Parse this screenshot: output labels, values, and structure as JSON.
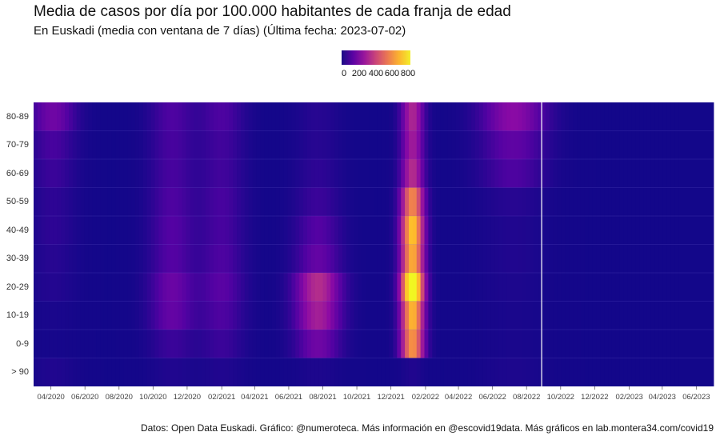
{
  "title": "Media de casos por día por 100.000 habitantes de cada franja de edad",
  "subtitle": "En Euskadi (media con ventana de 7 días)  (Última fecha: 2023-07-02)",
  "legend": {
    "labels": [
      "0",
      "200",
      "400",
      "600",
      "800"
    ]
  },
  "caption": "Datos: Open Data Euskadi. Gráfico: @numeroteca. Más información en @escovid19data.  Más gráficos en lab.montera34.com/covid19",
  "chart_data": {
    "type": "heatmap",
    "title": "Media de casos por día por 100.000 habitantes de cada franja de edad",
    "subtitle": "En Euskadi (media con ventana de 7 días)  (Última fecha: 2023-07-02)",
    "x_range": [
      "2020-03-01",
      "2023-07-02"
    ],
    "x_tick_labels": [
      "04/2020",
      "06/2020",
      "08/2020",
      "10/2020",
      "12/2020",
      "02/2021",
      "04/2021",
      "06/2021",
      "08/2021",
      "10/2021",
      "12/2021",
      "02/2022",
      "04/2022",
      "06/2022",
      "08/2022",
      "10/2022",
      "12/2022",
      "02/2023",
      "04/2023",
      "06/2023"
    ],
    "y_categories": [
      "80-89",
      "70-79",
      "60-69",
      "50-59",
      "40-49",
      "30-39",
      "20-29",
      "10-19",
      "0-9",
      "> 90"
    ],
    "color_scale": {
      "name": "plasma",
      "domain": [
        0,
        850
      ],
      "legend_breaks": [
        0,
        200,
        400,
        600,
        800
      ]
    },
    "vertical_line_date": "2022-08-28",
    "colors": {
      "background": "#1d1a7c",
      "low": "#0d0887",
      "high": "#f0f921",
      "marker_line": "#ffffff"
    },
    "approx_values_per_100k": {
      "baseline": 10,
      "waves": [
        {
          "label": "2020-04",
          "peak_date": "2020-04-01",
          "80-89": 150,
          "70-79": 80,
          "60-69": 60,
          "50-59": 40,
          "40-49": 40,
          "30-39": 30,
          "20-29": 25,
          "10-19": 10,
          "0-9": 5,
          "> 90": 20
        },
        {
          "label": "2020-10/11",
          "peak_date": "2020-11-01",
          "80-89": 90,
          "70-79": 80,
          "60-69": 80,
          "50-59": 90,
          "40-49": 100,
          "30-39": 100,
          "20-29": 140,
          "10-19": 130,
          "0-9": 60,
          "> 90": 20
        },
        {
          "label": "2021-01",
          "peak_date": "2021-01-28",
          "80-89": 90,
          "70-79": 70,
          "60-69": 70,
          "50-59": 80,
          "40-49": 80,
          "30-39": 90,
          "20-29": 110,
          "10-19": 90,
          "0-9": 60,
          "> 90": 20
        },
        {
          "label": "2021-07/08",
          "peak_date": "2021-07-20",
          "80-89": 30,
          "70-79": 30,
          "60-69": 40,
          "50-59": 60,
          "40-49": 100,
          "30-39": 130,
          "20-29": 300,
          "10-19": 260,
          "0-9": 150,
          "> 90": 15
        },
        {
          "label": "2022-01",
          "peak_date": "2022-01-05",
          "80-89": 280,
          "70-79": 250,
          "60-69": 300,
          "50-59": 520,
          "40-49": 650,
          "30-39": 600,
          "20-29": 850,
          "10-19": 620,
          "0-9": 550,
          "> 90": 20
        },
        {
          "label": "2022-06/07",
          "peak_date": "2022-07-05",
          "80-89": 200,
          "70-79": 120,
          "60-69": 90,
          "50-59": 30,
          "40-49": 20,
          "30-39": 20,
          "20-29": 15,
          "10-19": 10,
          "0-9": 10,
          "> 90": 15
        }
      ]
    }
  }
}
